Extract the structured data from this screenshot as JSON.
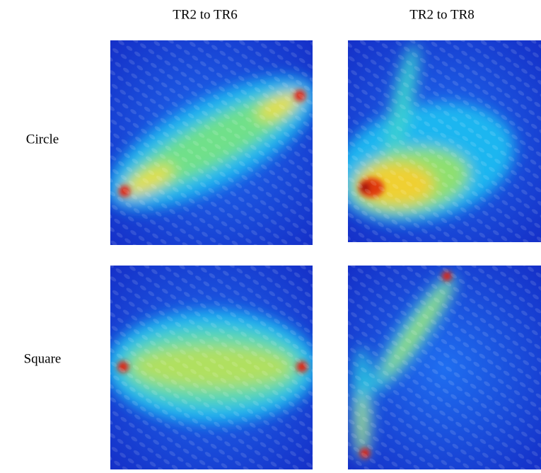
{
  "columns": [
    "TR2 to TR6",
    "TR2 to TR8"
  ],
  "rows": [
    "Circle",
    "Square"
  ]
}
